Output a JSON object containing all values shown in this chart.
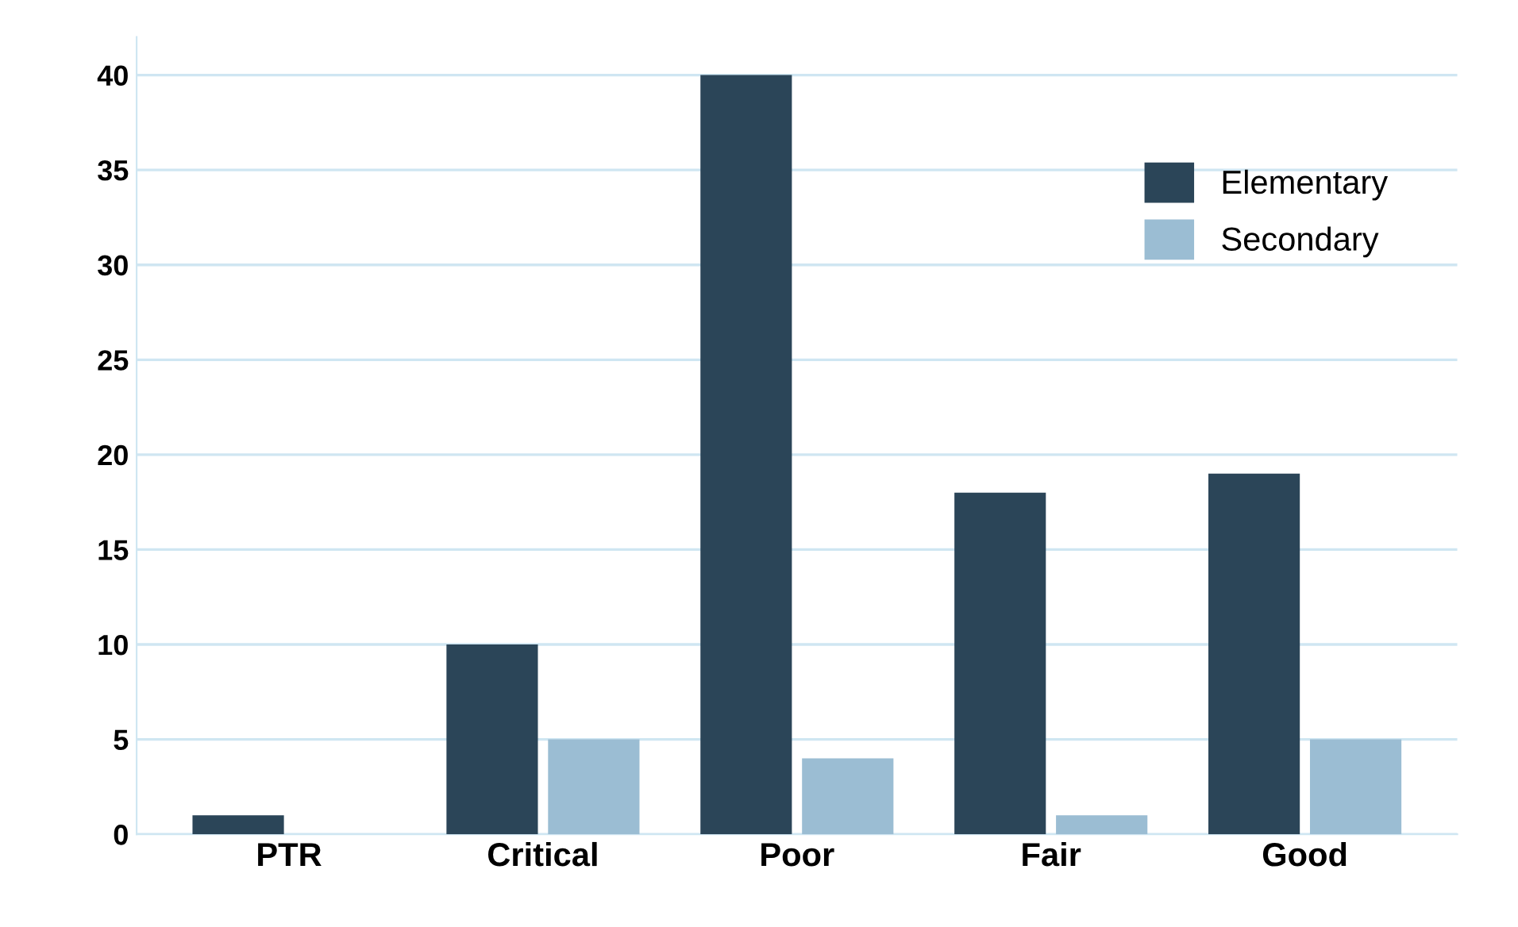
{
  "chart_data": {
    "type": "bar",
    "categories": [
      "PTR",
      "Critical",
      "Poor",
      "Fair",
      "Good"
    ],
    "series": [
      {
        "name": "Elementary",
        "color": "#2b4558",
        "values": [
          1,
          10,
          40,
          18,
          19
        ]
      },
      {
        "name": "Secondary",
        "color": "#9bbdd3",
        "values": [
          0,
          5,
          4,
          1,
          5
        ]
      }
    ],
    "ylim": [
      0,
      42
    ],
    "yticks": [
      0,
      5,
      10,
      15,
      20,
      25,
      30,
      35,
      40
    ],
    "grid": "y",
    "legend": "top right"
  }
}
